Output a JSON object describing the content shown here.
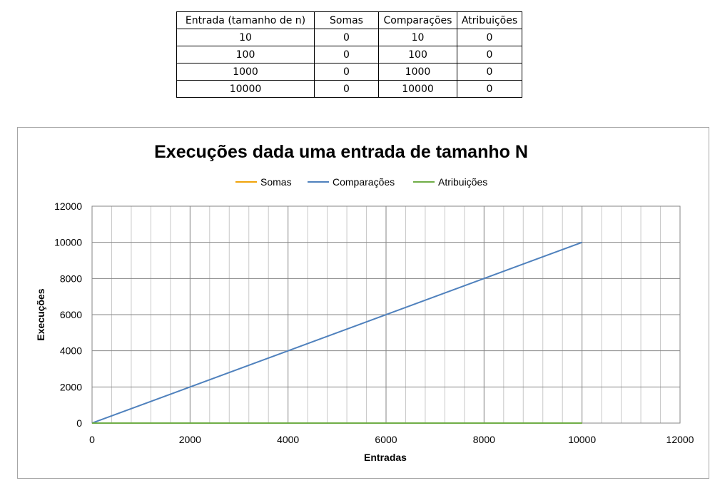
{
  "table": {
    "headers": [
      "Entrada (tamanho de n)",
      "Somas",
      "Comparações",
      "Atribuições"
    ],
    "rows": [
      [
        "10",
        "0",
        "10",
        "0"
      ],
      [
        "100",
        "0",
        "100",
        "0"
      ],
      [
        "1000",
        "0",
        "1000",
        "0"
      ],
      [
        "10000",
        "0",
        "10000",
        "0"
      ]
    ]
  },
  "chart_data": {
    "type": "line",
    "title": "Execuções dada uma entrada de tamanho N",
    "xlabel": "Entradas",
    "ylabel": "Execuções",
    "xlim": [
      0,
      12000
    ],
    "ylim": [
      0,
      12000
    ],
    "xticks": [
      0,
      2000,
      4000,
      6000,
      8000,
      10000,
      12000
    ],
    "yticks": [
      0,
      2000,
      4000,
      6000,
      8000,
      10000,
      12000
    ],
    "x_minor_step": 400,
    "grid": true,
    "legend_position": "top",
    "x": [
      10,
      100,
      1000,
      10000
    ],
    "series": [
      {
        "name": "Somas",
        "values": [
          0,
          0,
          0,
          0
        ],
        "color": "#f0a30a"
      },
      {
        "name": "Comparações",
        "values": [
          10,
          100,
          1000,
          10000
        ],
        "color": "#4f81bd"
      },
      {
        "name": "Atribuições",
        "values": [
          0,
          0,
          0,
          0
        ],
        "color": "#70ad47"
      }
    ]
  }
}
